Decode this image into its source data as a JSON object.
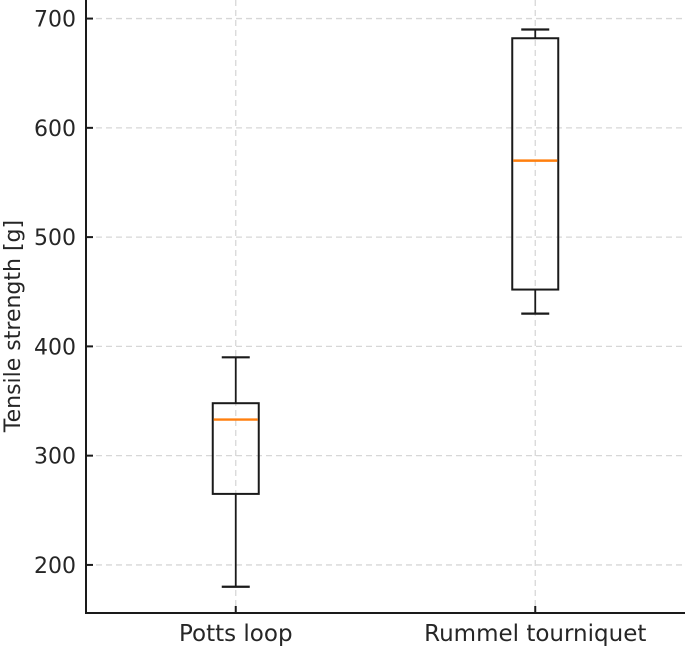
{
  "figure": {
    "background": "#ffffff",
    "kind": "static boxplot figure"
  },
  "chart_data": {
    "type": "boxplot",
    "title": "",
    "xlabel": "",
    "ylabel": "Tensile strength [g]",
    "categories": [
      "Potts loop",
      "Rummel tourniquet"
    ],
    "series": [
      {
        "name": "Potts loop",
        "whisker_low": 180,
        "q1": 265,
        "median": 333,
        "q3": 348,
        "whisker_high": 390
      },
      {
        "name": "Rummel tourniquet",
        "whisker_low": 430,
        "q1": 452,
        "median": 570,
        "q3": 682,
        "whisker_high": 690
      }
    ],
    "yticks": [
      200,
      300,
      400,
      500,
      600,
      700
    ],
    "ylim": [
      156,
      717
    ],
    "grid": {
      "visible": true,
      "style": "dashed",
      "axes": "both"
    },
    "legend": "none",
    "spines": {
      "left": true,
      "bottom": true,
      "top": false,
      "right": false
    },
    "colors": {
      "box_edge": "#1a1a1a",
      "whisker": "#1a1a1a",
      "median": "#ff7f0e",
      "grid": "#d7d7d7",
      "spine": "#1a1a1a",
      "text": "#262626",
      "background": "#ffffff"
    }
  }
}
